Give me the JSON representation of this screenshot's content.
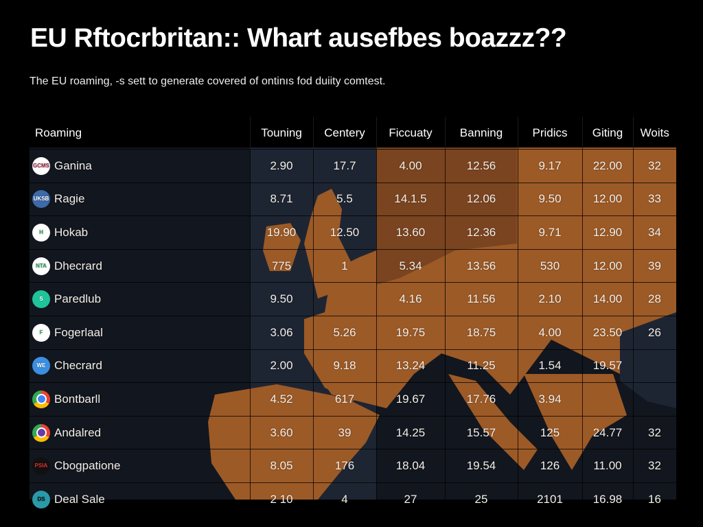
{
  "title": "EU Rftocrbritan:: Whart ausefbes boazzz??",
  "subtitle": "The EU roaming, -s sett to generate covered of ontinıs fod duiity comtest.",
  "table": {
    "headers": [
      "Roaming",
      "Touning",
      "Centery",
      "Ficcuaty",
      "Banning",
      "Pridics",
      "Giting",
      "Woits"
    ],
    "rows": [
      {
        "name": "Ganina",
        "logo": "GCMS",
        "logo_bg": "#ffffff",
        "logo_fg": "#a0203a",
        "values": [
          "2.90",
          "17.7",
          "4.00",
          "12.56",
          "9.17",
          "22.00",
          "32"
        ]
      },
      {
        "name": "Ragie",
        "logo": "UKSB",
        "logo_bg": "#3d6aa8",
        "logo_fg": "#ffffff",
        "values": [
          "8.71",
          "5.5",
          "14.1.5",
          "12.06",
          "9.50",
          "12.00",
          "33"
        ]
      },
      {
        "name": "Hokab",
        "logo": "H",
        "logo_bg": "#ffffff",
        "logo_fg": "#1e9a55",
        "values": [
          "19.90",
          "12.50",
          "13.60",
          "12.36",
          "9.71",
          "12.90",
          "34"
        ]
      },
      {
        "name": "Dhecrard",
        "logo": "NTA",
        "logo_bg": "#ffffff",
        "logo_fg": "#1e9a55",
        "values": [
          "775",
          "1",
          "5.34",
          "13.56",
          "530",
          "12.00",
          "39"
        ]
      },
      {
        "name": "Paredlub",
        "logo": "S",
        "logo_bg": "#1fc49a",
        "logo_fg": "#ffffff",
        "values": [
          "9.50",
          "",
          "4.16",
          "11.56",
          "2.10",
          "14.00",
          "28"
        ]
      },
      {
        "name": "Fogerlaal",
        "logo": "F",
        "logo_bg": "#ffffff",
        "logo_fg": "#2aa860",
        "values": [
          "3.06",
          "5.26",
          "19.75",
          "18.75",
          "4.00",
          "23.50",
          "26"
        ]
      },
      {
        "name": "Checrard",
        "logo": "WE",
        "logo_bg": "#3a8fe0",
        "logo_fg": "#ffffff",
        "values": [
          "2.00",
          "9.18",
          "13.24",
          "11.25",
          "1.54",
          "19.57",
          ""
        ]
      },
      {
        "name": "Bontbarll",
        "logo": "chrome",
        "logo_bg": "conic-gradient(#ea4335 0 33%,#fbbc05 0 66%,#34a853 0)",
        "logo_fg": "#4285f4",
        "values": [
          "4.52",
          "617",
          "19.67",
          "17.76",
          "3.94",
          "",
          ""
        ]
      },
      {
        "name": "Andalred",
        "logo": "chrome",
        "logo_bg": "conic-gradient(#ea4335 0 33%,#fbbc05 0 66%,#34a853 0)",
        "logo_fg": "#6a3aa8",
        "values": [
          "3.60",
          "39",
          "14.25",
          "15.57",
          "125",
          "24.77",
          "32"
        ]
      },
      {
        "name": "Cbogpatione",
        "logo": "PSIA",
        "logo_bg": "#111111",
        "logo_fg": "#e03030",
        "values": [
          "8.05",
          "176",
          "18.04",
          "19.54",
          "126",
          "11.00",
          "32"
        ]
      },
      {
        "name": "Deal Sale",
        "logo": "DS",
        "logo_bg": "#2a9aa8",
        "logo_fg": "#111111",
        "values": [
          "2 10",
          "4",
          "27",
          "25",
          "2101",
          "16.98",
          "16"
        ]
      }
    ]
  },
  "colors": {
    "land": "#9c5a27",
    "sea": "#1e2532",
    "panel": "#12161e"
  }
}
